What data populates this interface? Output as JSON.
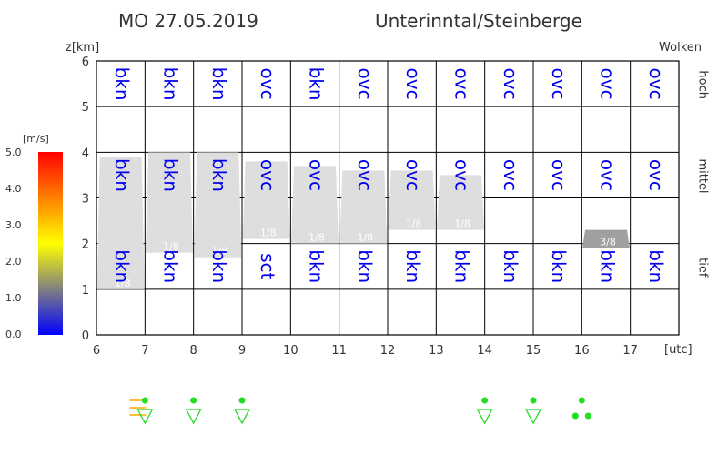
{
  "header": {
    "date": "MO 27.05.2019",
    "region": "Unterinntal/Steinberge"
  },
  "colorbar": {
    "unit": "[m/s]",
    "ticks": [
      "5.0",
      "4.0",
      "3.0",
      "2.0",
      "1.0",
      "0.0"
    ],
    "stops": [
      "#ff0000",
      "#ff8000",
      "#ffff00",
      "#808080",
      "#0000ff"
    ]
  },
  "colors": {
    "cloud_text": "#0000ee",
    "band_fill": "#dedede",
    "band_dark": "#a0a0a0",
    "symbol": "#22dd22",
    "fog": "#ffaa00"
  },
  "chart_data": {
    "type": "band",
    "title": "Wolken",
    "ylabel": "z[km]",
    "xlabel": "[utc]",
    "ylim": [
      0,
      6
    ],
    "xlim": [
      6,
      18
    ],
    "x_ticks": [
      "6",
      "7",
      "8",
      "9",
      "10",
      "11",
      "12",
      "13",
      "14",
      "15",
      "16",
      "17"
    ],
    "y_ticks": [
      "0",
      "1",
      "2",
      "3",
      "4",
      "5",
      "6"
    ],
    "levels": [
      "hoch",
      "mittel",
      "tief"
    ],
    "hours": [
      7,
      8,
      9,
      10,
      11,
      12,
      13,
      14,
      15,
      16,
      17,
      18
    ],
    "high": [
      "bkn",
      "bkn",
      "bkn",
      "ovc",
      "bkn",
      "ovc",
      "ovc",
      "ovc",
      "ovc",
      "ovc",
      "ovc",
      "ovc"
    ],
    "mid": [
      "bkn",
      "bkn",
      "bkn",
      "ovc",
      "ovc",
      "ovc",
      "ovc",
      "ovc",
      "ovc",
      "ovc",
      "ovc",
      "ovc"
    ],
    "low": [
      "bkn",
      "bkn",
      "bkn",
      "sct",
      "bkn",
      "bkn",
      "bkn",
      "bkn",
      "bkn",
      "bkn",
      "bkn",
      "bkn"
    ],
    "bands": [
      {
        "hour": 7,
        "base": 1.0,
        "top": 3.9,
        "label": "1/8"
      },
      {
        "hour": 8,
        "base": 1.8,
        "top": 4.0,
        "label": "1/8"
      },
      {
        "hour": 9,
        "base": 1.7,
        "top": 4.0,
        "label": "1/8"
      },
      {
        "hour": 10,
        "base": 2.1,
        "top": 3.8,
        "label": "1/8"
      },
      {
        "hour": 11,
        "base": 2.0,
        "top": 3.7,
        "label": "1/8"
      },
      {
        "hour": 12,
        "base": 2.0,
        "top": 3.6,
        "label": "1/8"
      },
      {
        "hour": 13,
        "base": 2.3,
        "top": 3.6,
        "label": "1/8"
      },
      {
        "hour": 14,
        "base": 2.3,
        "top": 3.5,
        "label": "1/8"
      },
      {
        "hour": 17,
        "base": 1.9,
        "top": 2.3,
        "label": "3/8",
        "dark": true
      }
    ],
    "symbols": [
      {
        "x": 6.85,
        "type": "fog"
      },
      {
        "x": 7.0,
        "type": "drizzle"
      },
      {
        "x": 8.0,
        "type": "drizzle"
      },
      {
        "x": 9.0,
        "type": "drizzle"
      },
      {
        "x": 14.0,
        "type": "drizzle"
      },
      {
        "x": 15.0,
        "type": "drizzle"
      },
      {
        "x": 16.0,
        "type": "rain"
      }
    ]
  }
}
